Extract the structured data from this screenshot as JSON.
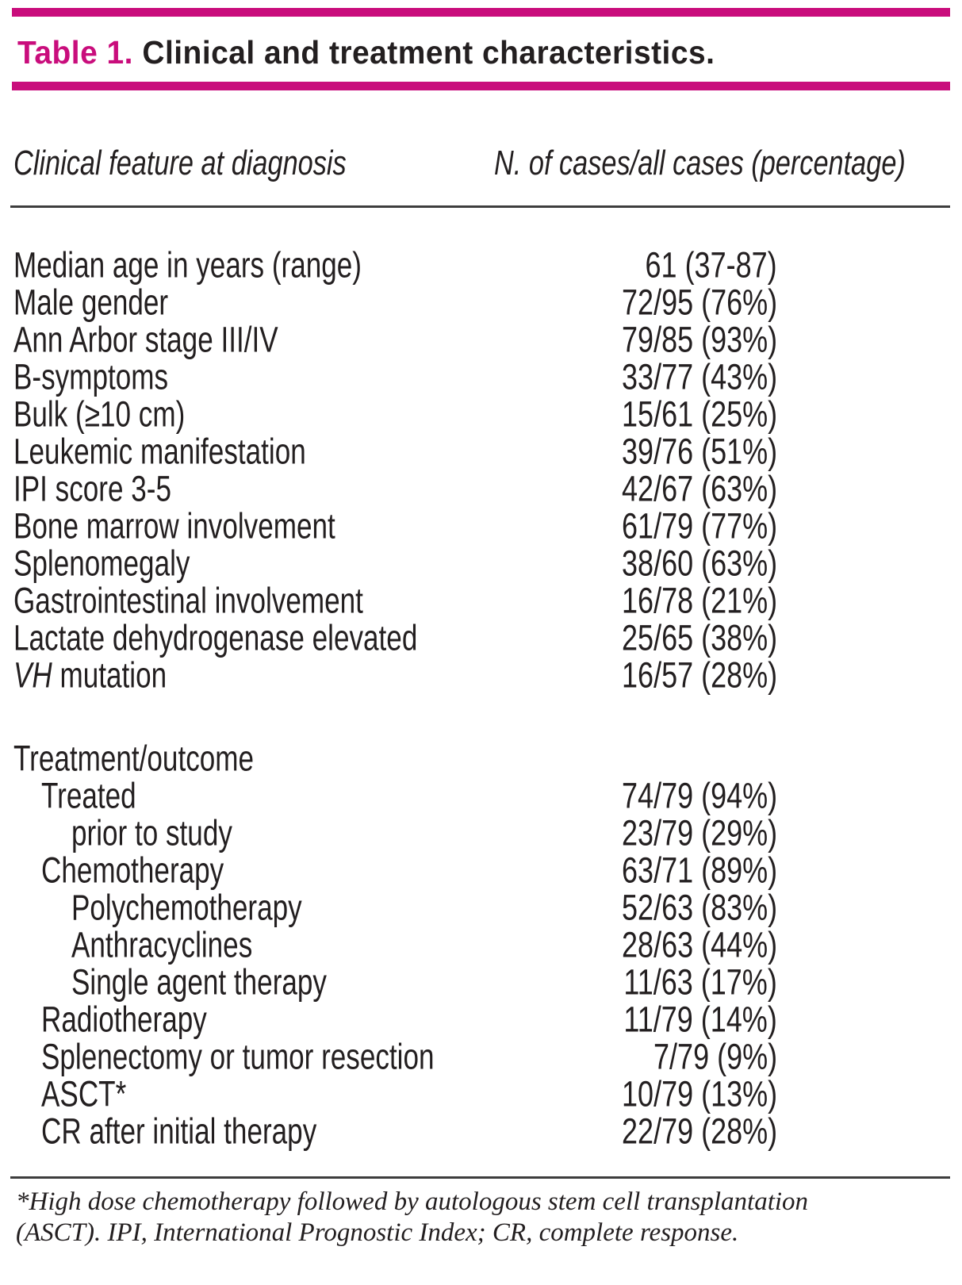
{
  "title": {
    "prefix": "Table 1.",
    "text": "Clinical and treatment characteristics."
  },
  "columns": {
    "left": "Clinical feature at diagnosis",
    "right": "N. of cases/all cases (percentage)"
  },
  "table": {
    "rows": [
      {
        "label": "Median age in years (range)",
        "value": "61 (37-87)",
        "indent": 0
      },
      {
        "label": "Male gender",
        "value": "72/95 (76%)",
        "indent": 0
      },
      {
        "label": "Ann Arbor stage III/IV",
        "value": "79/85 (93%)",
        "indent": 0
      },
      {
        "label": "B-symptoms",
        "value": "33/77 (43%)",
        "indent": 0
      },
      {
        "label": "Bulk (≥10 cm)",
        "value": "15/61 (25%)",
        "indent": 0
      },
      {
        "label": "Leukemic manifestation",
        "value": "39/76 (51%)",
        "indent": 0
      },
      {
        "label": "IPI score 3-5",
        "value": "42/67 (63%)",
        "indent": 0
      },
      {
        "label": "Bone marrow involvement",
        "value": "61/79 (77%)",
        "indent": 0
      },
      {
        "label": "Splenomegaly",
        "value": "38/60 (63%)",
        "indent": 0
      },
      {
        "label": "Gastrointestinal involvement",
        "value": "16/78 (21%)",
        "indent": 0
      },
      {
        "label": "Lactate dehydrogenase elevated",
        "value": "25/65 (38%)",
        "indent": 0
      },
      {
        "label_italic_prefix": "VH",
        "label": "mutation",
        "value": "16/57 (28%)",
        "indent": 0
      },
      {
        "spacer": true
      },
      {
        "label": "Treatment/outcome",
        "value": "",
        "indent": 0
      },
      {
        "label": "Treated",
        "value": "74/79 (94%)",
        "indent": 1
      },
      {
        "label": "prior to study",
        "value": "23/79 (29%)",
        "indent": 2
      },
      {
        "label": "Chemotherapy",
        "value": "63/71 (89%)",
        "indent": 1
      },
      {
        "label": "Polychemotherapy",
        "value": "52/63 (83%)",
        "indent": 2
      },
      {
        "label": "Anthracyclines",
        "value": "28/63 (44%)",
        "indent": 2
      },
      {
        "label": "Single agent therapy",
        "value": "11/63 (17%)",
        "indent": 2
      },
      {
        "label": "Radiotherapy",
        "value": "11/79 (14%)",
        "indent": 1
      },
      {
        "label": "Splenectomy or tumor resection",
        "value": "7/79 (9%)",
        "indent": 1
      },
      {
        "label": "ASCT*",
        "value": "10/79 (13%)",
        "indent": 1
      },
      {
        "label": "CR after initial therapy",
        "value": "22/79 (28%)",
        "indent": 1
      }
    ]
  },
  "footnote": {
    "lines": [
      "*High dose chemotherapy followed by autologous stem cell transplantation",
      "(ASCT). IPI, International Prognostic Index; CR, complete response."
    ]
  },
  "colors": {
    "accent": "#c90d7c",
    "text": "#231f20",
    "line": "#3d3d3d"
  }
}
